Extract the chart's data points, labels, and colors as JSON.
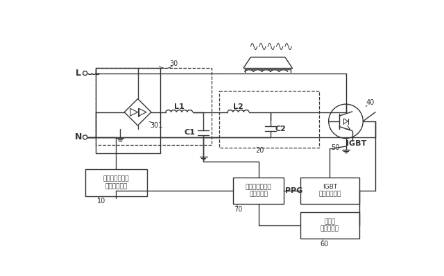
{
  "bg_color": "#ffffff",
  "line_color": "#333333",
  "labels": {
    "L": "L",
    "N": "N",
    "L1": "L1",
    "L2": "L2",
    "C1": "C1",
    "C2": "C2",
    "IGBT": "IGBT",
    "301": "301",
    "10": "10",
    "20": "20",
    "30": "30",
    "40": "40",
    "50": "50",
    "60": "60",
    "70": "70",
    "PPG": "PPG",
    "unit1": "電圧ゼロクロス\n検出ユニット",
    "unit2": "メインコントロ\nールチップ",
    "unit3": "IGBT\n駆動ユニット",
    "unit4": "駆動変\n圧ユニット"
  }
}
